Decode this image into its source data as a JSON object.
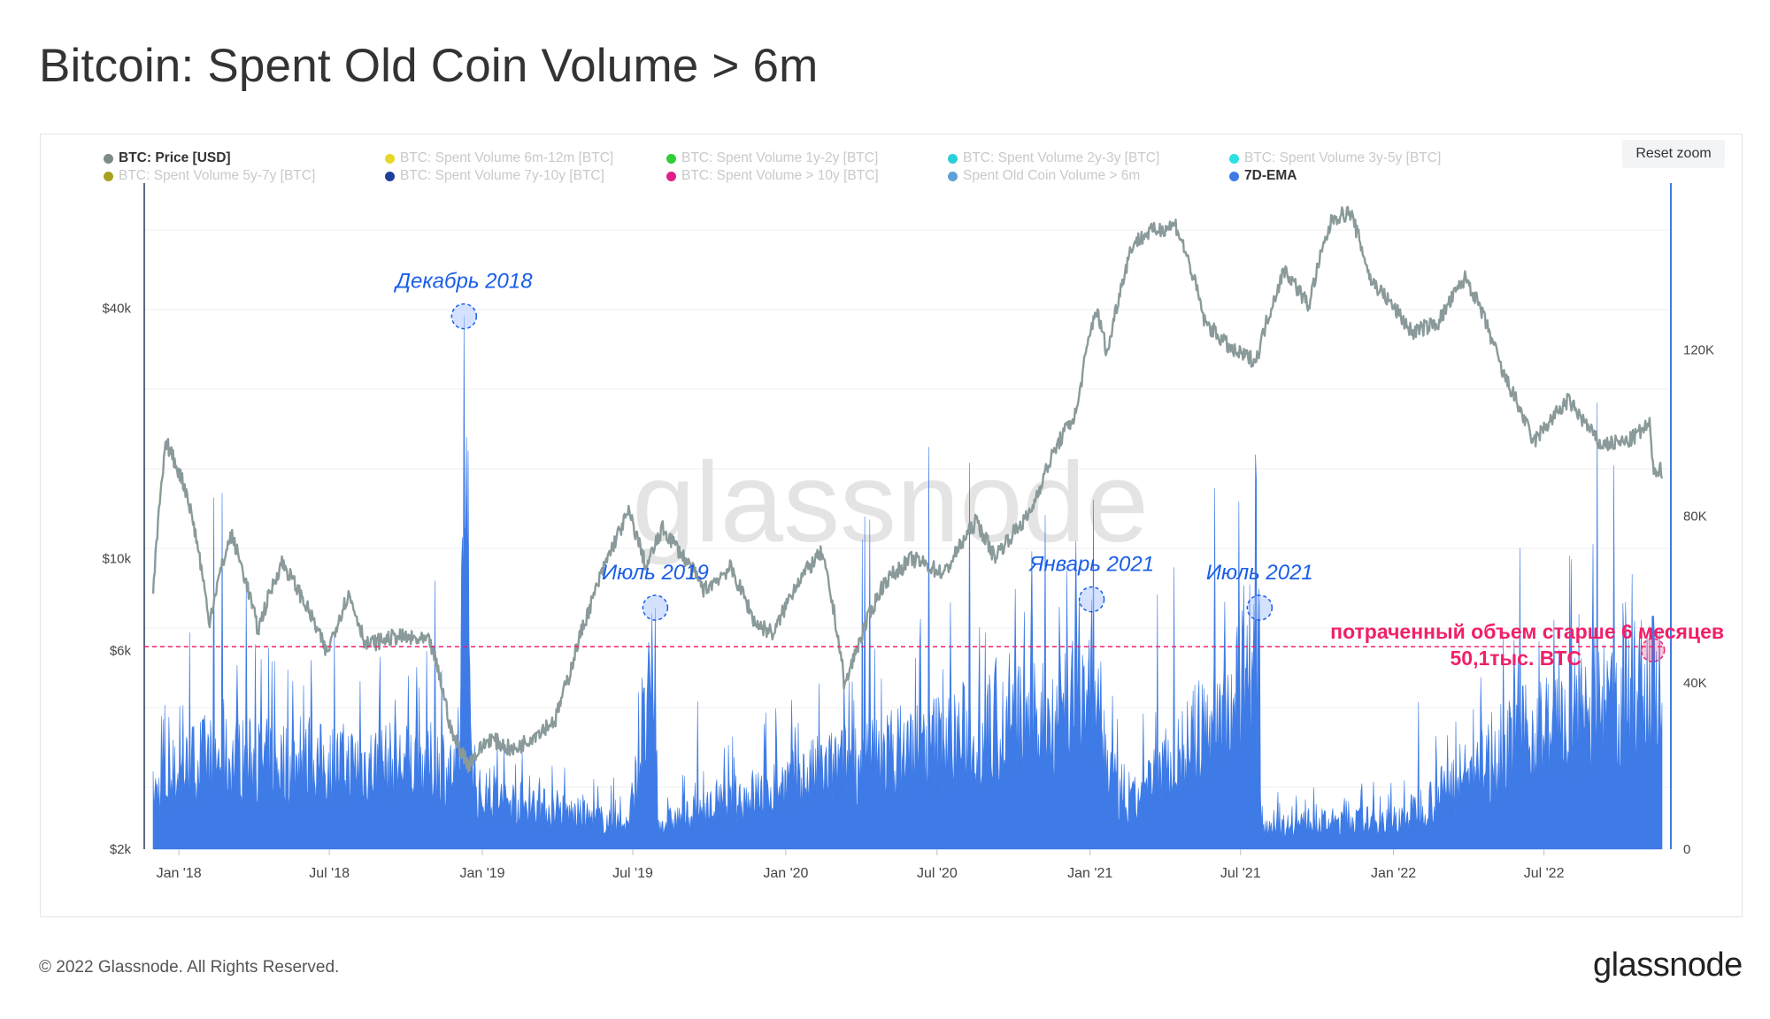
{
  "title": "Bitcoin: Spent Old Coin Volume > 6m",
  "reset_zoom": "Reset zoom",
  "footer": "© 2022 Glassnode. All Rights Reserved.",
  "brand": "glassnode",
  "watermark": "glassnode",
  "colors": {
    "price": "#8a9a9a",
    "volume": "#3e7be6",
    "annotation": "#1a5ee8",
    "threshold": "#f0206a",
    "axis_right": "#3e7be6",
    "axis_left": "#5a6b80"
  },
  "legend": [
    {
      "label": "BTC: Price [USD]",
      "color": "#7d8a8a",
      "active": true
    },
    {
      "label": "BTC: Spent Volume 6m-12m [BTC]",
      "color": "#e8d82a",
      "active": false
    },
    {
      "label": "BTC: Spent Volume 1y-2y [BTC]",
      "color": "#2fce3a",
      "active": false
    },
    {
      "label": "BTC: Spent Volume 2y-3y [BTC]",
      "color": "#2ad0d8",
      "active": false
    },
    {
      "label": "BTC: Spent Volume 3y-5y [BTC]",
      "color": "#2ae0e0",
      "active": false
    },
    {
      "label": "BTC: Spent Volume 5y-7y [BTC]",
      "color": "#a8a020",
      "active": false
    },
    {
      "label": "BTC: Spent Volume 7y-10y [BTC]",
      "color": "#1f3f9a",
      "active": false
    },
    {
      "label": "BTC: Spent Volume > 10y [BTC]",
      "color": "#e0208a",
      "active": false
    },
    {
      "label": "Spent Old Coin Volume > 6m",
      "color": "#5fa0d8",
      "active": false
    },
    {
      "label": "7D-EMA",
      "color": "#3e7be6",
      "active": true
    }
  ],
  "chart_data": {
    "type": "line",
    "x_axis": {
      "tick_labels": [
        "Jan '18",
        "Jul '18",
        "Jan '19",
        "Jul '19",
        "Jan '20",
        "Jul '20",
        "Jan '21",
        "Jul '21",
        "Jan '22",
        "Jul '22"
      ],
      "range": [
        "2017-12-01",
        "2022-11-20"
      ]
    },
    "y_left": {
      "scale": "log",
      "tick_labels": [
        "$2k",
        "$6k",
        "$10k",
        "$40k"
      ],
      "ticks": [
        2000,
        6000,
        10000,
        40000
      ],
      "range": [
        2000,
        80000
      ]
    },
    "y_right": {
      "scale": "linear",
      "tick_labels": [
        "0",
        "40K",
        "80K",
        "120K"
      ],
      "ticks": [
        0,
        40000,
        80000,
        120000
      ],
      "range": [
        0,
        160000
      ]
    },
    "grid": true,
    "legend_position": "top",
    "series": [
      {
        "name": "BTC: Price [USD]",
        "axis": "left",
        "style": "line",
        "points": [
          [
            "2017-12-01",
            8000
          ],
          [
            "2017-12-17",
            19000
          ],
          [
            "2018-01-10",
            14500
          ],
          [
            "2018-02-06",
            7000
          ],
          [
            "2018-03-05",
            11400
          ],
          [
            "2018-04-06",
            6700
          ],
          [
            "2018-05-05",
            9800
          ],
          [
            "2018-06-28",
            5900
          ],
          [
            "2018-07-24",
            8200
          ],
          [
            "2018-08-14",
            6200
          ],
          [
            "2018-09-20",
            6500
          ],
          [
            "2018-10-30",
            6300
          ],
          [
            "2018-11-25",
            3800
          ],
          [
            "2018-12-15",
            3200
          ],
          [
            "2019-01-10",
            3700
          ],
          [
            "2019-02-08",
            3450
          ],
          [
            "2019-03-30",
            4100
          ],
          [
            "2019-04-15",
            5200
          ],
          [
            "2019-05-14",
            8000
          ],
          [
            "2019-06-26",
            12900
          ],
          [
            "2019-07-17",
            9500
          ],
          [
            "2019-08-06",
            11800
          ],
          [
            "2019-09-25",
            8400
          ],
          [
            "2019-10-26",
            9500
          ],
          [
            "2019-11-25",
            7000
          ],
          [
            "2019-12-18",
            6600
          ],
          [
            "2020-01-15",
            8800
          ],
          [
            "2020-02-13",
            10300
          ],
          [
            "2020-03-12",
            4900
          ],
          [
            "2020-04-29",
            8800
          ],
          [
            "2020-06-01",
            10000
          ],
          [
            "2020-07-10",
            9200
          ],
          [
            "2020-08-17",
            12300
          ],
          [
            "2020-09-08",
            10100
          ],
          [
            "2020-10-21",
            12800
          ],
          [
            "2020-11-24",
            19000
          ],
          [
            "2020-12-16",
            22500
          ],
          [
            "2021-01-08",
            40000
          ],
          [
            "2021-01-22",
            31000
          ],
          [
            "2021-02-21",
            57000
          ],
          [
            "2021-03-13",
            61000
          ],
          [
            "2021-04-14",
            63500
          ],
          [
            "2021-05-19",
            37000
          ],
          [
            "2021-06-22",
            31500
          ],
          [
            "2021-07-20",
            30000
          ],
          [
            "2021-08-23",
            49500
          ],
          [
            "2021-09-21",
            40500
          ],
          [
            "2021-10-20",
            66000
          ],
          [
            "2021-11-10",
            68000
          ],
          [
            "2021-12-04",
            47000
          ],
          [
            "2022-01-23",
            35000
          ],
          [
            "2022-02-24",
            37000
          ],
          [
            "2022-03-29",
            47500
          ],
          [
            "2022-05-12",
            28000
          ],
          [
            "2022-06-18",
            19000
          ],
          [
            "2022-07-30",
            24000
          ],
          [
            "2022-09-06",
            18800
          ],
          [
            "2022-10-10",
            19100
          ],
          [
            "2022-11-05",
            21000
          ],
          [
            "2022-11-09",
            16500
          ],
          [
            "2022-11-20",
            16300
          ]
        ]
      },
      {
        "name": "7D-EMA",
        "axis": "right",
        "style": "area",
        "points": [
          [
            "2017-12-01",
            18000
          ],
          [
            "2018-01-25",
            30000
          ],
          [
            "2018-06-05",
            28000
          ],
          [
            "2018-11-15",
            28000
          ],
          [
            "2018-12-04",
            22000
          ],
          [
            "2018-12-10",
            128000
          ],
          [
            "2018-12-12",
            70000
          ],
          [
            "2018-12-25",
            18000
          ],
          [
            "2019-06-25",
            8000
          ],
          [
            "2019-07-28",
            58000
          ],
          [
            "2019-07-31",
            8000
          ],
          [
            "2020-03-12",
            28000
          ],
          [
            "2020-11-15",
            44000
          ],
          [
            "2020-12-28",
            58000
          ],
          [
            "2021-01-04",
            46000
          ],
          [
            "2021-02-10",
            12000
          ],
          [
            "2021-07-24",
            58000
          ],
          [
            "2021-07-26",
            8000
          ],
          [
            "2022-01-10",
            10000
          ],
          [
            "2022-06-18",
            38000
          ],
          [
            "2022-11-09",
            50100
          ],
          [
            "2022-11-20",
            50100
          ]
        ]
      }
    ],
    "annotations": [
      {
        "label": "Декабрь 2018",
        "date": "2018-12-10",
        "value": 128000
      },
      {
        "label": "Июль 2019",
        "date": "2019-07-28",
        "value": 58000
      },
      {
        "label": "Январь 2021",
        "date": "2021-01-03",
        "value": 60000
      },
      {
        "label": "Июль 2021",
        "date": "2021-07-24",
        "value": 58000
      }
    ],
    "threshold": {
      "value": 50100,
      "label_line1": "потраченный объем старше 6 месяцев",
      "label_line2": "50,1тыс. BTC",
      "date": "2022-11-09"
    }
  }
}
